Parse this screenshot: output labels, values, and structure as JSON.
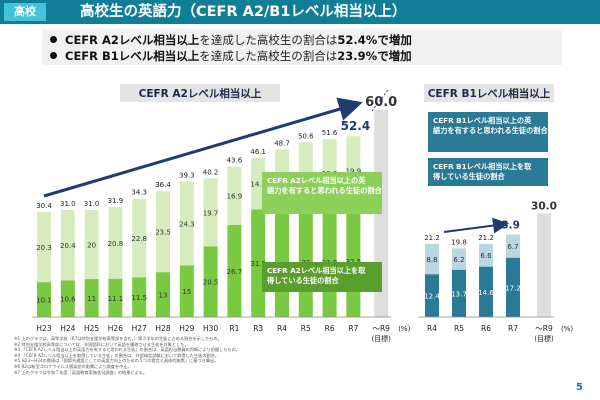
{
  "header": {
    "badge": "高校",
    "title": "高校生の英語力（CEFR A2/B1レベル相当以上）"
  },
  "summary": [
    {
      "pre": "CEFR A2レベル相当以上",
      "mid": "を達成した高校生の割合は",
      "value": "52.4%",
      "post": "で増加"
    },
    {
      "pre": "CEFR B1レベル相当以上",
      "mid": "を達成した高校生の割合は",
      "value": "23.9%",
      "post": "で増加"
    }
  ],
  "chart_data": [
    {
      "type": "bar",
      "title": "CEFR A2レベル相当以上",
      "categories": [
        "H23",
        "H24",
        "H25",
        "H26",
        "H27",
        "H28",
        "H29",
        "H30",
        "R1",
        "R3",
        "R4",
        "R5",
        "R6",
        "R7"
      ],
      "series": [
        {
          "name": "CEFR A2レベル相当以上を取得している生徒の割合",
          "values": [
            10.1,
            10.6,
            11.0,
            11.1,
            11.5,
            13.0,
            15.0,
            20.5,
            26.7,
            31.2,
            30.2,
            32.0,
            31.8,
            32.5
          ]
        },
        {
          "name": "CEFR A2レベル相当以上の英語力を有すると思われる生徒の割合",
          "values": [
            20.3,
            20.4,
            20.0,
            20.8,
            22.8,
            23.5,
            24.3,
            19.7,
            16.9,
            14.9,
            18.4,
            18.6,
            19.8,
            19.9
          ]
        }
      ],
      "totals": [
        30.4,
        31.0,
        31.0,
        31.9,
        34.3,
        36.4,
        39.3,
        40.2,
        43.6,
        46.1,
        48.7,
        50.6,
        51.6,
        52.4
      ],
      "target": {
        "label": "～R9",
        "sublabel": "(目標)",
        "value": 60.0,
        "text": "60.0"
      },
      "latest_text": "52.4",
      "unit": "(%)",
      "legend": {
        "a": "CEFR A2レベル相当以上の英語力を有すると思われる生徒の割合",
        "b": "CEFR A2レベル相当以上を取得している生徒の割合"
      },
      "colors": {
        "acquired": "#7ac943",
        "estimated": "#d6ecbd",
        "target": "#dedede",
        "arrow": "#1f3b70"
      }
    },
    {
      "type": "bar",
      "title": "CEFR B1レベル相当以上",
      "categories": [
        "R4",
        "R5",
        "R6",
        "R7"
      ],
      "series": [
        {
          "name": "CEFR B1レベル相当以上を取得している生徒の割合",
          "values": [
            12.4,
            13.7,
            14.6,
            17.2
          ]
        },
        {
          "name": "CEFR B1レベル相当以上の英語力を有すると思われる生徒の割合",
          "values": [
            8.8,
            6.2,
            6.6,
            6.7
          ]
        }
      ],
      "totals": [
        21.2,
        19.8,
        21.2,
        23.9
      ],
      "target": {
        "label": "～R9",
        "sublabel": "(目標)",
        "value": 30.0,
        "text": "30.0"
      },
      "latest_text": "23.9",
      "unit": "(%)",
      "legend": {
        "a": "CEFR B1レベル相当以上の英語力を有すると思われる生徒の割合",
        "b": "CEFR B1レベル相当以上を取得している生徒の割合"
      },
      "colors": {
        "acquired": "#2a7a96",
        "estimated": "#b9d7e2",
        "target": "#dedede",
        "arrow": "#1f3b70"
      }
    }
  ],
  "notes": [
    "※1 上のグラフは、高等学校（R7は特別支援学校高等部を含む。）第３学年の生徒に占める割合を示したもの。",
    "※2 特別支援学校高等部については、外国語科において英語を履修させる生徒を対象とした。",
    "※3 「CEFR A2レベル相当以上の英語力を有すると思われる生徒」の割合は、英語担当教員の判断により把握したもの。",
    "※4 「CEFR A2レベル相当以上を取得している生徒」の割合は、外部検定試験において取得した生徒の割合。",
    "※5 H23～H24の数値は「国際共通語としての英語力向上のための５つの提言と具体的施策」に基づき算出。",
    "※6 R2は新型コロナウイルス感染症の影響により調査を中止。",
    "※7 上のグラフは令和７年度「英語教育実施状況調査」の結果による。"
  ],
  "page_number": "5"
}
